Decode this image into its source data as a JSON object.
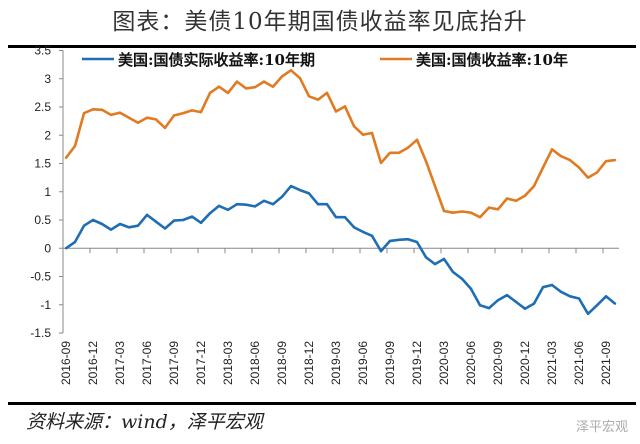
{
  "title": "图表：美债10年期国债收益率见底抬升",
  "source": "资料来源：wind，泽平宏观",
  "watermark": "泽平宏观",
  "chart_data": {
    "type": "line",
    "title": "图表：美债10年期国债收益率见底抬升",
    "ylim": [
      -1.5,
      3.5
    ],
    "yticks": [
      "3.5",
      "3",
      "2.5",
      "2",
      "1.5",
      "1",
      "0.5",
      "0",
      "-0.5",
      "-1",
      "-1.5"
    ],
    "xtick_labels": [
      "2016-09",
      "2016-12",
      "2017-03",
      "2017-06",
      "2017-09",
      "2017-12",
      "2018-03",
      "2018-06",
      "2018-09",
      "2018-12",
      "2019-03",
      "2019-06",
      "2019-09",
      "2019-12",
      "2020-03",
      "2020-06",
      "2020-09",
      "2020-12",
      "2021-03",
      "2021-06",
      "2021-09"
    ],
    "x": [
      "2016-09",
      "2016-10",
      "2016-11",
      "2016-12",
      "2017-01",
      "2017-02",
      "2017-03",
      "2017-04",
      "2017-05",
      "2017-06",
      "2017-07",
      "2017-08",
      "2017-09",
      "2017-10",
      "2017-11",
      "2017-12",
      "2018-01",
      "2018-02",
      "2018-03",
      "2018-04",
      "2018-05",
      "2018-06",
      "2018-07",
      "2018-08",
      "2018-09",
      "2018-10",
      "2018-11",
      "2018-12",
      "2019-01",
      "2019-02",
      "2019-03",
      "2019-04",
      "2019-05",
      "2019-06",
      "2019-07",
      "2019-08",
      "2019-09",
      "2019-10",
      "2019-11",
      "2019-12",
      "2020-01",
      "2020-02",
      "2020-03",
      "2020-04",
      "2020-05",
      "2020-06",
      "2020-07",
      "2020-08",
      "2020-09",
      "2020-10",
      "2020-11",
      "2020-12",
      "2021-01",
      "2021-02",
      "2021-03",
      "2021-04",
      "2021-05",
      "2021-06",
      "2021-07",
      "2021-08",
      "2021-09",
      "2021-10"
    ],
    "grid": false,
    "legend": "top",
    "series": [
      {
        "name": "美国:国债实际收益率:10年期",
        "color": "#1f6eb4",
        "values": [
          0.0,
          0.11,
          0.4,
          0.5,
          0.43,
          0.33,
          0.43,
          0.37,
          0.4,
          0.59,
          0.47,
          0.35,
          0.49,
          0.5,
          0.56,
          0.45,
          0.62,
          0.75,
          0.68,
          0.78,
          0.77,
          0.74,
          0.84,
          0.78,
          0.91,
          1.1,
          1.03,
          0.97,
          0.78,
          0.78,
          0.55,
          0.55,
          0.37,
          0.29,
          0.22,
          -0.05,
          0.13,
          0.15,
          0.16,
          0.11,
          -0.16,
          -0.28,
          -0.19,
          -0.42,
          -0.54,
          -0.72,
          -1.01,
          -1.06,
          -0.92,
          -0.83,
          -0.95,
          -1.07,
          -0.98,
          -0.69,
          -0.65,
          -0.77,
          -0.85,
          -0.89,
          -1.16,
          -1.01,
          -0.85,
          -0.98
        ]
      },
      {
        "name": "美国:国债收益率:10年",
        "color": "#e07b22",
        "values": [
          1.6,
          1.81,
          2.39,
          2.46,
          2.45,
          2.36,
          2.4,
          2.31,
          2.22,
          2.31,
          2.28,
          2.13,
          2.35,
          2.39,
          2.44,
          2.41,
          2.75,
          2.86,
          2.75,
          2.95,
          2.83,
          2.85,
          2.95,
          2.86,
          3.04,
          3.15,
          3.01,
          2.69,
          2.63,
          2.75,
          2.42,
          2.51,
          2.16,
          2.01,
          2.04,
          1.51,
          1.69,
          1.69,
          1.78,
          1.92,
          1.54,
          1.1,
          0.66,
          0.63,
          0.65,
          0.63,
          0.55,
          0.72,
          0.69,
          0.88,
          0.84,
          0.93,
          1.1,
          1.43,
          1.75,
          1.63,
          1.56,
          1.43,
          1.25,
          1.34,
          1.54,
          1.56
        ]
      }
    ]
  }
}
